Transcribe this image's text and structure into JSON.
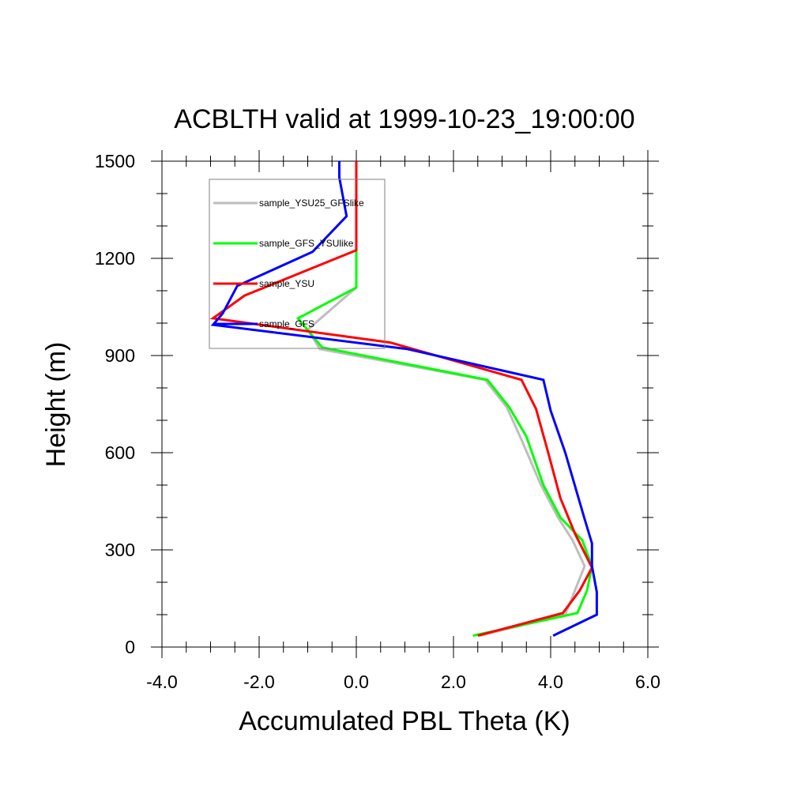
{
  "chart_data": {
    "type": "line",
    "title": "ACBLTH valid at 1999-10-23_19:00:00",
    "xlabel": "Accumulated PBL Theta (K)",
    "ylabel": "Height (m)",
    "xlim": [
      -4.0,
      6.0
    ],
    "ylim": [
      0,
      1500
    ],
    "xticks": [
      "-4.0",
      "-2.0",
      "0.0",
      "2.0",
      "4.0",
      "6.0"
    ],
    "yticks": [
      "0",
      "300",
      "600",
      "900",
      "1200",
      "1500"
    ],
    "grid": false,
    "legend_position": "top-left",
    "series": [
      {
        "name": "sample_YSU25_GFSlike",
        "color": "#bebebe",
        "points": [
          [
            2.55,
            35
          ],
          [
            4.3,
            100
          ],
          [
            4.7,
            250
          ],
          [
            4.45,
            330
          ],
          [
            4.15,
            400
          ],
          [
            3.8,
            500
          ],
          [
            3.4,
            640
          ],
          [
            3.1,
            740
          ],
          [
            2.65,
            825
          ],
          [
            -0.75,
            920
          ],
          [
            -1.0,
            980
          ],
          [
            0.0,
            1110
          ],
          [
            0.0,
            1500
          ]
        ]
      },
      {
        "name": "sample_GFS_YSUlike",
        "color": "#00ff00",
        "points": [
          [
            2.4,
            35
          ],
          [
            4.55,
            105
          ],
          [
            4.75,
            175
          ],
          [
            4.85,
            250
          ],
          [
            4.65,
            330
          ],
          [
            4.2,
            400
          ],
          [
            3.85,
            500
          ],
          [
            3.5,
            650
          ],
          [
            3.15,
            740
          ],
          [
            2.7,
            825
          ],
          [
            -0.7,
            925
          ],
          [
            -0.9,
            960
          ],
          [
            -1.2,
            1015
          ],
          [
            0.0,
            1110
          ],
          [
            0.0,
            1500
          ]
        ]
      },
      {
        "name": "sample_YSU",
        "color": "#ff0000",
        "points": [
          [
            2.5,
            35
          ],
          [
            4.25,
            105
          ],
          [
            4.6,
            175
          ],
          [
            4.85,
            245
          ],
          [
            4.5,
            350
          ],
          [
            4.2,
            460
          ],
          [
            3.95,
            600
          ],
          [
            3.7,
            735
          ],
          [
            3.4,
            825
          ],
          [
            0.7,
            940
          ],
          [
            -2.95,
            1015
          ],
          [
            -2.3,
            1085
          ],
          [
            0.0,
            1225
          ],
          [
            0.0,
            1500
          ]
        ]
      },
      {
        "name": "sample_GFS",
        "color": "#0000ff",
        "points": [
          [
            4.05,
            35
          ],
          [
            4.95,
            100
          ],
          [
            4.95,
            170
          ],
          [
            4.85,
            250
          ],
          [
            4.85,
            320
          ],
          [
            4.7,
            395
          ],
          [
            4.3,
            600
          ],
          [
            4.0,
            730
          ],
          [
            3.85,
            825
          ],
          [
            1.05,
            920
          ],
          [
            -2.95,
            995
          ],
          [
            -2.75,
            1030
          ],
          [
            -2.45,
            1115
          ],
          [
            -0.9,
            1220
          ],
          [
            -0.2,
            1330
          ],
          [
            -0.35,
            1450
          ],
          [
            -0.35,
            1500
          ]
        ]
      }
    ]
  }
}
